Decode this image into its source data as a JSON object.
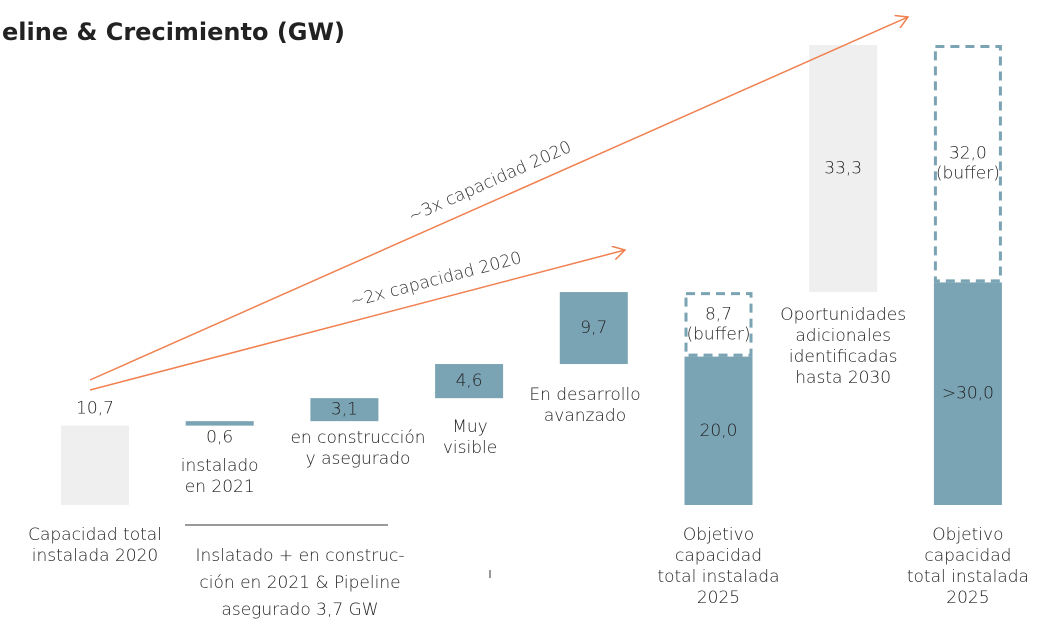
{
  "chart_data": {
    "type": "waterfall",
    "title": "eline & Crecimiento (GW)",
    "segments": [
      {
        "value": 10.7,
        "value_label": "10,7",
        "kind": "start",
        "color": "#efefef",
        "axis_label": [
          "Capacidad total",
          "instalada 2020"
        ]
      },
      {
        "value": 0.6,
        "value_label": "0,6",
        "kind": "step",
        "color": "#7aa3b3",
        "description": [
          "instalado",
          "en 2021"
        ]
      },
      {
        "value": 3.1,
        "value_label": "3,1",
        "kind": "step",
        "color": "#7aa3b3",
        "description": [
          "en construcción",
          "y asegurado"
        ]
      },
      {
        "value": 4.6,
        "value_label": "4,6",
        "kind": "step",
        "color": "#7aa3b3",
        "description": [
          "Muy",
          "visible"
        ]
      },
      {
        "value": 9.7,
        "value_label": "9,7",
        "kind": "step",
        "color": "#7aa3b3",
        "description": [
          "En desarrollo",
          "avanzado"
        ]
      },
      {
        "value": 20.0,
        "value_label": "20,0",
        "kind": "start",
        "color": "#7aa3b3",
        "axis_label": [
          "Objetivo",
          "capacidad",
          "total instalada",
          "2025"
        ]
      },
      {
        "value": 8.7,
        "value_label": "8,7",
        "kind": "stack",
        "buffer": true,
        "color": "#7aa3b3",
        "note": "(buffer)"
      },
      {
        "value": 33.3,
        "value_label": "33,3",
        "kind": "step",
        "color": "#efefef",
        "description": [
          "Oportunidades",
          "adicionales",
          "identificadas",
          "hasta 2030"
        ]
      },
      {
        "value": 30.0,
        "value_label": ">30,0",
        "kind": "start",
        "color": "#7aa3b3",
        "axis_label": [
          "Objetivo",
          "capacidad",
          "total instalada",
          "2025"
        ]
      },
      {
        "value": 32.0,
        "value_label": "32,0",
        "kind": "stack",
        "buffer": true,
        "color": "#7aa3b3",
        "note": "(buffer)"
      }
    ],
    "bracket_label": [
      "Inslatado + en construc-",
      "ción en 2021 & Pipeline",
      "asegurado 3,7 GW"
    ],
    "annotations": [
      {
        "text": "~3x capacidad 2020"
      },
      {
        "text": "~2x capacidad 2020"
      }
    ]
  }
}
